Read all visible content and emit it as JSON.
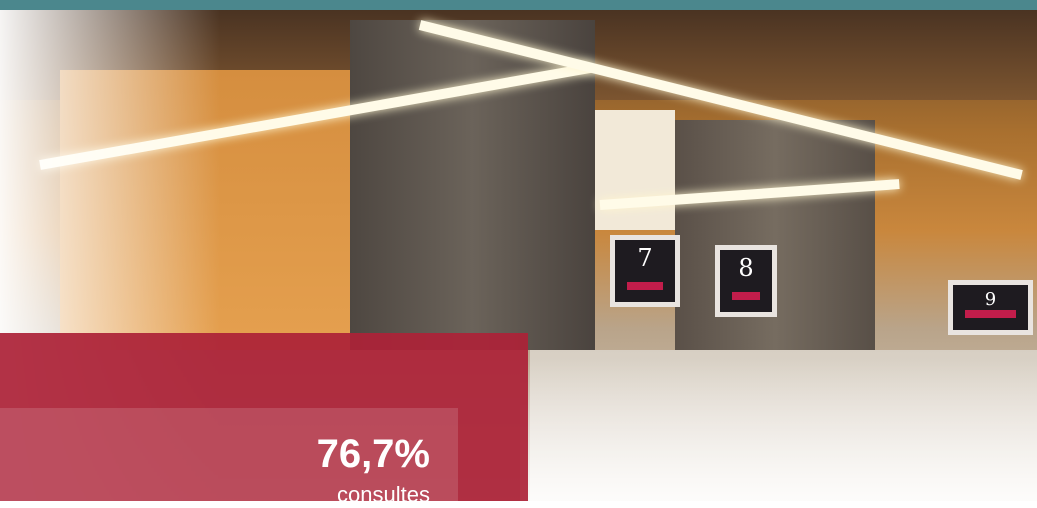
{
  "stat": {
    "value": "76,7%",
    "label": "consultes"
  },
  "photo": {
    "signs": [
      "7",
      "8",
      "9"
    ]
  }
}
